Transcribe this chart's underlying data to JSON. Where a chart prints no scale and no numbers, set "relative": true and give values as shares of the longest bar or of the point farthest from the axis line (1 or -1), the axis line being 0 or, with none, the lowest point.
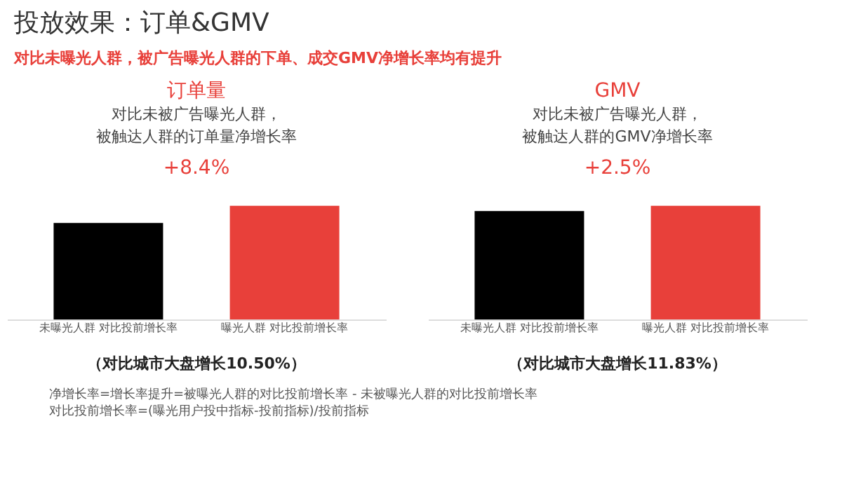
{
  "chart_data": [
    {
      "type": "other",
      "title": "投放效果：订单&GMV",
      "subtitle": "对比未曝光人群，被广告曝光人群的下单、成交GMV净增长率均有提升",
      "annotations": [
        "净增长率=增长率提升=被曝光人群的对比投前增长率 - 未被曝光人群的对比投前增长率",
        "对比投前增长率=(曝光用户投中指标-投前指标)/投前指标"
      ]
    },
    {
      "type": "bar",
      "title": "订单量",
      "categories": [
        "未曝光人群 对比投前增长率",
        "曝光人群 对比投前增长率"
      ],
      "values": [
        0.85,
        1
      ],
      "colors": [
        "#000000",
        "#e8403a"
      ],
      "relative": true,
      "annotations": [
        "对比未被广告曝光人群，",
        "被触达人群的订单量净增长率",
        "+8.4%",
        "（对比城市大盘增长10.50%）"
      ]
    },
    {
      "type": "bar",
      "title": "GMV",
      "categories": [
        "未曝光人群 对比投前增长率",
        "曝光人群 对比投前增长率"
      ],
      "values": [
        0.955,
        1
      ],
      "colors": [
        "#000000",
        "#e8403a"
      ],
      "relative": true,
      "annotations": [
        "对比未被广告曝光人群，",
        "被触达人群的GMV净增长率",
        "+2.5%",
        "（对比城市大盘增长11.83%）"
      ]
    }
  ]
}
